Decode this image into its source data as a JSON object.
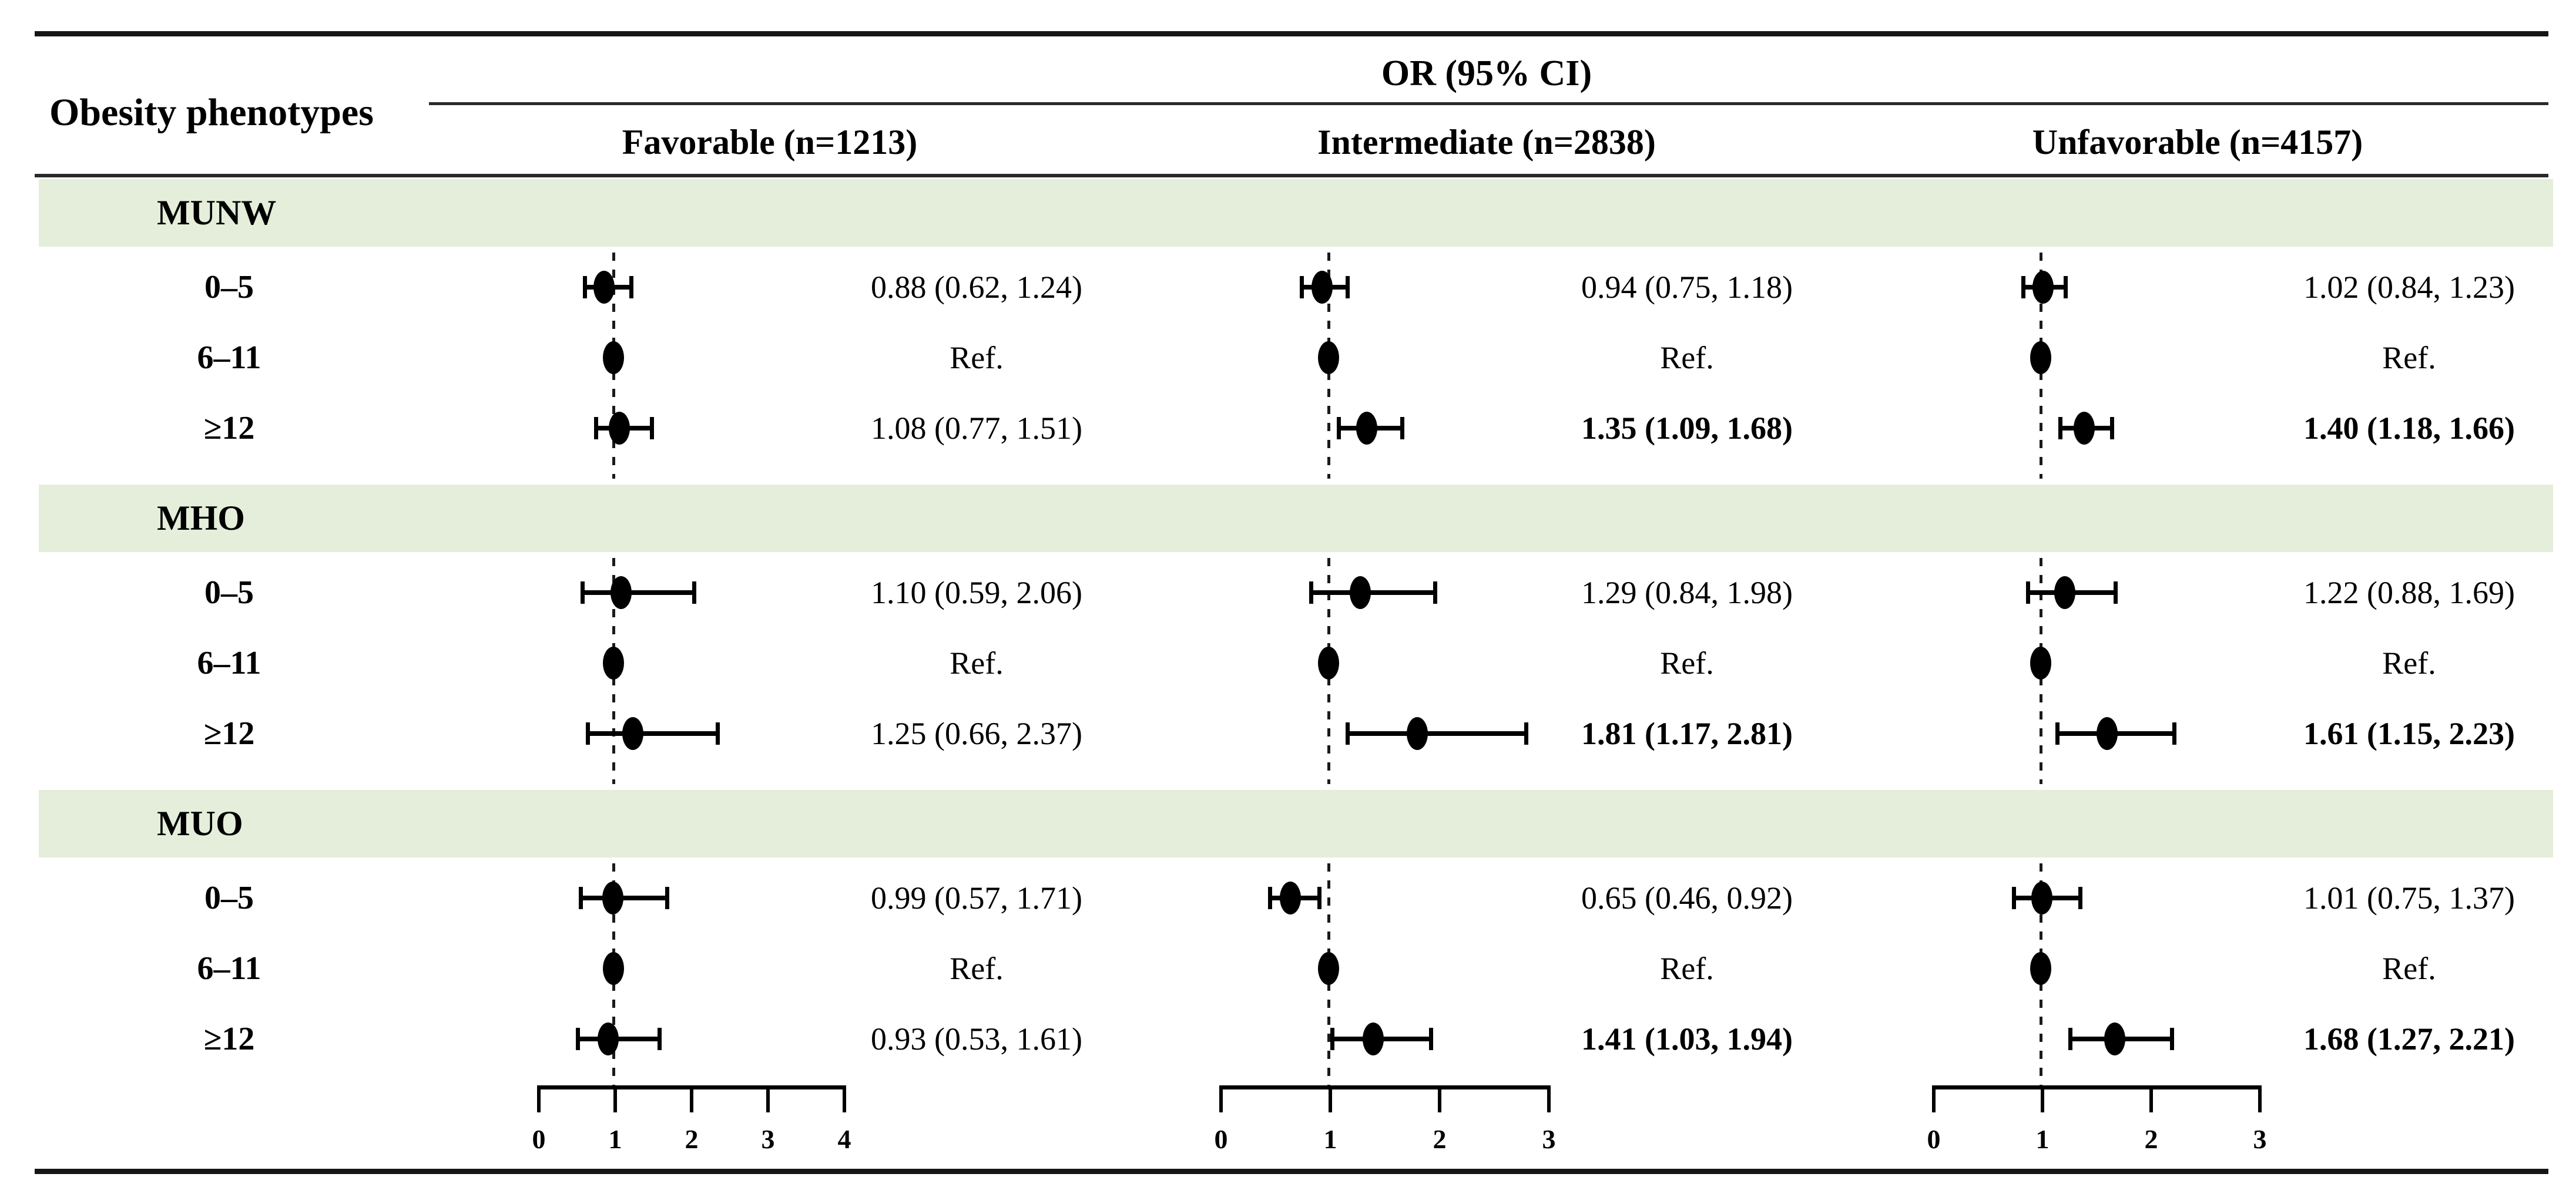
{
  "header": {
    "row_label_header": "Obesity phenotypes",
    "spanner_title": "OR (95% CI)"
  },
  "colors": {
    "section_band_green": "#e4eeda",
    "text": "#000000",
    "rule": "#151515"
  },
  "chart_data": {
    "type": "forest",
    "title": "OR (95% CI)",
    "row_label_header": "Obesity phenotypes",
    "legend_position": "none",
    "grid": "off",
    "groups": [
      {
        "label": "Favorable (n=1213)",
        "xlim": [
          0,
          4
        ],
        "ticks": [
          "0",
          "1",
          "2",
          "3",
          "4"
        ],
        "ref_line": 1
      },
      {
        "label": "Intermediate (n=2838)",
        "xlim": [
          0,
          3
        ],
        "ticks": [
          "0",
          "1",
          "2",
          "3"
        ],
        "ref_line": 1
      },
      {
        "label": "Unfavorable (n=4157)",
        "xlim": [
          0,
          3
        ],
        "ticks": [
          "0",
          "1",
          "2",
          "3"
        ],
        "ref_line": 1
      }
    ],
    "sections": [
      {
        "label": "MUNW",
        "rows": [
          {
            "label": "0–5",
            "cells": [
              {
                "or": 0.88,
                "lo": 0.62,
                "hi": 1.24,
                "text": "0.88 (0.62, 1.24)",
                "bold": false,
                "ref": false
              },
              {
                "or": 0.94,
                "lo": 0.75,
                "hi": 1.18,
                "text": "0.94 (0.75, 1.18)",
                "bold": false,
                "ref": false
              },
              {
                "or": 1.02,
                "lo": 0.84,
                "hi": 1.23,
                "text": "1.02 (0.84, 1.23)",
                "bold": false,
                "ref": false
              }
            ]
          },
          {
            "label": "6–11",
            "cells": [
              {
                "or": 1.0,
                "text": "Ref.",
                "bold": false,
                "ref": true
              },
              {
                "or": 1.0,
                "text": "Ref.",
                "bold": false,
                "ref": true
              },
              {
                "or": 1.0,
                "text": "Ref.",
                "bold": false,
                "ref": true
              }
            ]
          },
          {
            "label": "≥12",
            "cells": [
              {
                "or": 1.08,
                "lo": 0.77,
                "hi": 1.51,
                "text": "1.08 (0.77, 1.51)",
                "bold": false,
                "ref": false
              },
              {
                "or": 1.35,
                "lo": 1.09,
                "hi": 1.68,
                "text": "1.35 (1.09, 1.68)",
                "bold": true,
                "ref": false
              },
              {
                "or": 1.4,
                "lo": 1.18,
                "hi": 1.66,
                "text": "1.40 (1.18, 1.66)",
                "bold": true,
                "ref": false
              }
            ]
          }
        ]
      },
      {
        "label": "MHO",
        "rows": [
          {
            "label": "0–5",
            "cells": [
              {
                "or": 1.1,
                "lo": 0.59,
                "hi": 2.06,
                "text": "1.10 (0.59, 2.06)",
                "bold": false,
                "ref": false
              },
              {
                "or": 1.29,
                "lo": 0.84,
                "hi": 1.98,
                "text": "1.29 (0.84, 1.98)",
                "bold": false,
                "ref": false
              },
              {
                "or": 1.22,
                "lo": 0.88,
                "hi": 1.69,
                "text": "1.22 (0.88, 1.69)",
                "bold": false,
                "ref": false
              }
            ]
          },
          {
            "label": "6–11",
            "cells": [
              {
                "or": 1.0,
                "text": "Ref.",
                "bold": false,
                "ref": true
              },
              {
                "or": 1.0,
                "text": "Ref.",
                "bold": false,
                "ref": true
              },
              {
                "or": 1.0,
                "text": "Ref.",
                "bold": false,
                "ref": true
              }
            ]
          },
          {
            "label": "≥12",
            "cells": [
              {
                "or": 1.25,
                "lo": 0.66,
                "hi": 2.37,
                "text": "1.25 (0.66, 2.37)",
                "bold": false,
                "ref": false
              },
              {
                "or": 1.81,
                "lo": 1.17,
                "hi": 2.81,
                "text": "1.81 (1.17, 2.81)",
                "bold": true,
                "ref": false
              },
              {
                "or": 1.61,
                "lo": 1.15,
                "hi": 2.23,
                "text": "1.61 (1.15, 2.23)",
                "bold": true,
                "ref": false
              }
            ]
          }
        ]
      },
      {
        "label": "MUO",
        "rows": [
          {
            "label": "0–5",
            "cells": [
              {
                "or": 0.99,
                "lo": 0.57,
                "hi": 1.71,
                "text": "0.99 (0.57, 1.71)",
                "bold": false,
                "ref": false
              },
              {
                "or": 0.65,
                "lo": 0.46,
                "hi": 0.92,
                "text": "0.65 (0.46, 0.92)",
                "bold": false,
                "ref": false
              },
              {
                "or": 1.01,
                "lo": 0.75,
                "hi": 1.37,
                "text": "1.01 (0.75, 1.37)",
                "bold": false,
                "ref": false
              }
            ]
          },
          {
            "label": "6–11",
            "cells": [
              {
                "or": 1.0,
                "text": "Ref.",
                "bold": false,
                "ref": true
              },
              {
                "or": 1.0,
                "text": "Ref.",
                "bold": false,
                "ref": true
              },
              {
                "or": 1.0,
                "text": "Ref.",
                "bold": false,
                "ref": true
              }
            ]
          },
          {
            "label": "≥12",
            "cells": [
              {
                "or": 0.93,
                "lo": 0.53,
                "hi": 1.61,
                "text": "0.93 (0.53, 1.61)",
                "bold": false,
                "ref": false
              },
              {
                "or": 1.41,
                "lo": 1.03,
                "hi": 1.94,
                "text": "1.41 (1.03, 1.94)",
                "bold": true,
                "ref": false
              },
              {
                "or": 1.68,
                "lo": 1.27,
                "hi": 2.21,
                "text": "1.68 (1.27, 2.21)",
                "bold": true,
                "ref": false
              }
            ]
          }
        ]
      }
    ]
  }
}
